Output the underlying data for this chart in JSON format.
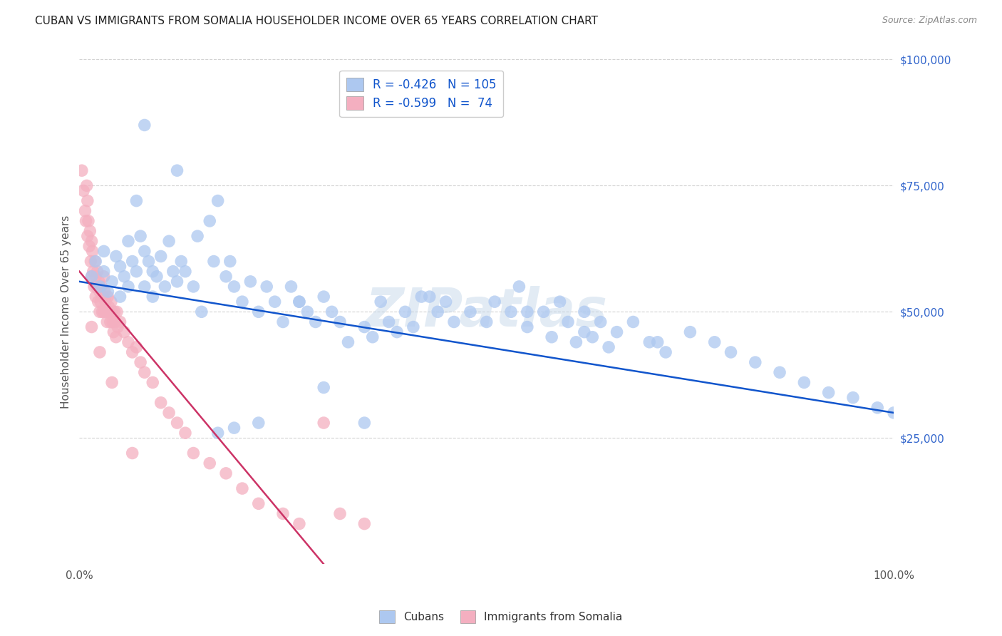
{
  "title": "CUBAN VS IMMIGRANTS FROM SOMALIA HOUSEHOLDER INCOME OVER 65 YEARS CORRELATION CHART",
  "source": "Source: ZipAtlas.com",
  "ylabel": "Householder Income Over 65 years",
  "ytick_labels": [
    "$100,000",
    "$75,000",
    "$50,000",
    "$25,000"
  ],
  "ytick_values": [
    100000,
    75000,
    50000,
    25000
  ],
  "right_ytick_labels": [
    "$100,000",
    "$75,000",
    "$50,000",
    "$25,000"
  ],
  "legend_label1": "R = -0.426   N = 105",
  "legend_label2": "R = -0.599   N =  74",
  "legend_bottom1": "Cubans",
  "legend_bottom2": "Immigrants from Somalia",
  "blue_scatter_color": "#adc8f0",
  "pink_scatter_color": "#f4afc0",
  "blue_line_color": "#1155cc",
  "pink_line_color": "#cc3366",
  "background_color": "#ffffff",
  "grid_color": "#c8c8c8",
  "title_color": "#222222",
  "right_tick_color": "#3366cc",
  "source_color": "#888888",
  "watermark_text": "ZIPatlas",
  "watermark_color": "#c0d4e8",
  "cubans_x": [
    1.5,
    2.0,
    2.5,
    3.0,
    3.0,
    3.5,
    4.0,
    4.5,
    5.0,
    5.0,
    5.5,
    6.0,
    6.0,
    6.5,
    7.0,
    7.0,
    7.5,
    8.0,
    8.0,
    8.5,
    9.0,
    9.0,
    9.5,
    10.0,
    10.5,
    11.0,
    11.5,
    12.0,
    12.5,
    13.0,
    14.0,
    14.5,
    15.0,
    16.0,
    16.5,
    17.0,
    18.0,
    18.5,
    19.0,
    20.0,
    21.0,
    22.0,
    23.0,
    24.0,
    25.0,
    26.0,
    27.0,
    28.0,
    29.0,
    30.0,
    31.0,
    32.0,
    33.0,
    35.0,
    36.0,
    37.0,
    38.0,
    39.0,
    40.0,
    41.0,
    43.0,
    44.0,
    45.0,
    46.0,
    48.0,
    50.0,
    51.0,
    53.0,
    54.0,
    55.0,
    57.0,
    58.0,
    59.0,
    60.0,
    61.0,
    62.0,
    63.0,
    64.0,
    65.0,
    66.0,
    68.0,
    70.0,
    72.0,
    75.0,
    78.0,
    80.0,
    83.0,
    86.0,
    89.0,
    92.0,
    95.0,
    98.0,
    100.0,
    30.0,
    35.0,
    22.0,
    17.0,
    62.0,
    71.0,
    55.0,
    42.0,
    8.0,
    12.0,
    27.0,
    19.0
  ],
  "cubans_y": [
    57000,
    60000,
    55000,
    58000,
    62000,
    54000,
    56000,
    61000,
    53000,
    59000,
    57000,
    64000,
    55000,
    60000,
    58000,
    72000,
    65000,
    62000,
    55000,
    60000,
    58000,
    53000,
    57000,
    61000,
    55000,
    64000,
    58000,
    56000,
    60000,
    58000,
    55000,
    65000,
    50000,
    68000,
    60000,
    72000,
    57000,
    60000,
    55000,
    52000,
    56000,
    50000,
    55000,
    52000,
    48000,
    55000,
    52000,
    50000,
    48000,
    53000,
    50000,
    48000,
    44000,
    47000,
    45000,
    52000,
    48000,
    46000,
    50000,
    47000,
    53000,
    50000,
    52000,
    48000,
    50000,
    48000,
    52000,
    50000,
    55000,
    47000,
    50000,
    45000,
    52000,
    48000,
    44000,
    50000,
    45000,
    48000,
    43000,
    46000,
    48000,
    44000,
    42000,
    46000,
    44000,
    42000,
    40000,
    38000,
    36000,
    34000,
    33000,
    31000,
    30000,
    35000,
    28000,
    28000,
    26000,
    46000,
    44000,
    50000,
    53000,
    87000,
    78000,
    52000,
    27000
  ],
  "somalia_x": [
    0.3,
    0.5,
    0.7,
    0.8,
    0.9,
    1.0,
    1.0,
    1.1,
    1.2,
    1.3,
    1.4,
    1.5,
    1.5,
    1.6,
    1.7,
    1.8,
    1.9,
    2.0,
    2.0,
    2.1,
    2.2,
    2.3,
    2.4,
    2.5,
    2.5,
    2.6,
    2.7,
    2.8,
    2.9,
    3.0,
    3.0,
    3.1,
    3.2,
    3.3,
    3.4,
    3.5,
    3.6,
    3.7,
    3.8,
    3.9,
    4.0,
    4.1,
    4.2,
    4.3,
    4.4,
    4.5,
    4.6,
    4.7,
    5.0,
    5.5,
    6.0,
    6.5,
    7.0,
    7.5,
    8.0,
    9.0,
    10.0,
    11.0,
    12.0,
    13.0,
    14.0,
    16.0,
    18.0,
    20.0,
    22.0,
    25.0,
    27.0,
    30.0,
    32.0,
    35.0,
    1.5,
    2.5,
    4.0,
    6.5
  ],
  "somalia_y": [
    78000,
    74000,
    70000,
    68000,
    75000,
    72000,
    65000,
    68000,
    63000,
    66000,
    60000,
    64000,
    57000,
    62000,
    58000,
    55000,
    60000,
    57000,
    53000,
    55000,
    58000,
    52000,
    56000,
    54000,
    50000,
    52000,
    55000,
    50000,
    53000,
    57000,
    50000,
    54000,
    52000,
    50000,
    48000,
    53000,
    51000,
    50000,
    48000,
    52000,
    50000,
    48000,
    46000,
    50000,
    48000,
    45000,
    50000,
    47000,
    48000,
    46000,
    44000,
    42000,
    43000,
    40000,
    38000,
    36000,
    32000,
    30000,
    28000,
    26000,
    22000,
    20000,
    18000,
    15000,
    12000,
    10000,
    8000,
    28000,
    10000,
    8000,
    47000,
    42000,
    36000,
    22000
  ],
  "xlim": [
    0,
    100
  ],
  "ylim": [
    0,
    100000
  ],
  "blue_line_x0": 0,
  "blue_line_y0": 56000,
  "blue_line_x1": 100,
  "blue_line_y1": 30000,
  "pink_line_x0": 0,
  "pink_line_y0": 58000,
  "pink_line_x1": 30,
  "pink_line_y1": 0
}
